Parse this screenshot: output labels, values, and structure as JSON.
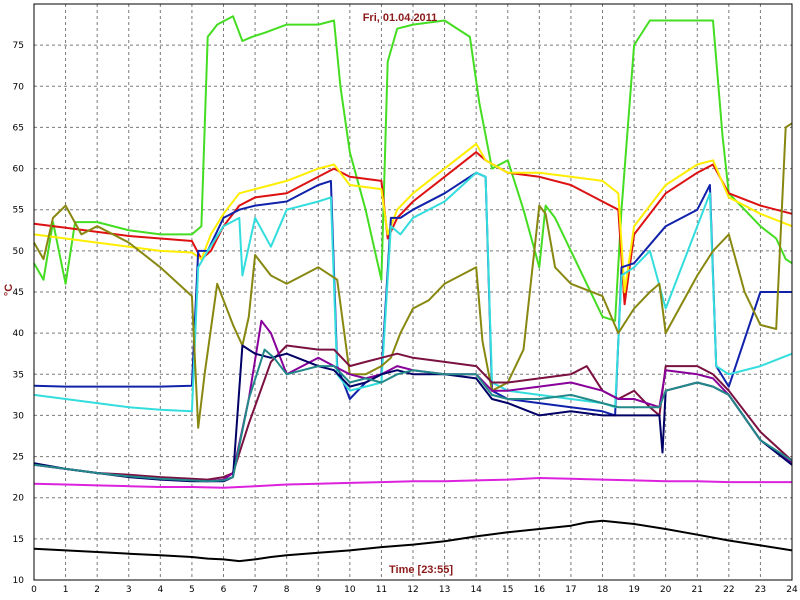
{
  "chart_data": {
    "type": "line",
    "title": "Fri, 01.04.2011",
    "xlabel": "Time [23:55]",
    "ylabel": "°C",
    "xlim": [
      0,
      24
    ],
    "ylim": [
      10,
      80
    ],
    "xticks": [
      0,
      1,
      2,
      3,
      4,
      5,
      6,
      7,
      8,
      9,
      10,
      11,
      12,
      13,
      14,
      15,
      16,
      17,
      18,
      19,
      20,
      21,
      22,
      23,
      24
    ],
    "yticks": [
      10,
      15,
      20,
      25,
      30,
      35,
      40,
      45,
      50,
      55,
      60,
      65,
      70,
      75
    ],
    "grid": true,
    "colors": {
      "grid": "#7a7a7a",
      "frame": "#000000",
      "title": "#8b1a1a"
    },
    "series": [
      {
        "color": "#44dd22",
        "x": [
          0,
          0.3,
          0.6,
          1.0,
          1.3,
          2.0,
          3.0,
          4.0,
          5.0,
          5.3,
          5.5,
          5.8,
          6.3,
          6.6,
          6.9,
          7.3,
          8.0,
          9.0,
          9.5,
          9.7,
          10.0,
          10.5,
          11.0,
          11.2,
          11.5,
          12.0,
          13.0,
          13.8,
          14.1,
          14.5,
          15.0,
          15.5,
          16.0,
          16.2,
          16.5,
          17.0,
          18.0,
          18.4,
          18.6,
          19.0,
          19.5,
          20.0,
          21.0,
          21.5,
          21.8,
          22.0,
          22.5,
          23.0,
          23.5,
          23.8,
          24.0
        ],
        "values": [
          48.5,
          46.5,
          53.5,
          46,
          53.5,
          53.5,
          52.5,
          52,
          52,
          53,
          76,
          77.5,
          78.5,
          75.5,
          76,
          76.5,
          77.5,
          77.5,
          78,
          70,
          62,
          55,
          46.5,
          73,
          77,
          77.5,
          78,
          76,
          68,
          60,
          61,
          55,
          48,
          55.5,
          54,
          50,
          42,
          41.5,
          55,
          75,
          78,
          78,
          78,
          78,
          64,
          57,
          55,
          53,
          51.5,
          49,
          48.5
        ]
      },
      {
        "color": "#dd1111",
        "x": [
          0,
          1,
          2,
          3,
          4,
          5,
          5.3,
          5.6,
          6,
          6.5,
          7,
          8,
          9,
          9.5,
          10,
          11,
          11.2,
          11.5,
          12,
          13,
          14,
          14.3,
          15,
          16,
          17,
          18,
          18.5,
          18.7,
          19,
          20,
          21,
          21.5,
          22,
          23,
          24
        ],
        "values": [
          53.3,
          52.8,
          52.3,
          51.8,
          51.5,
          51.2,
          49,
          50,
          53,
          55.5,
          56.5,
          57,
          59,
          60,
          59,
          58.5,
          51.5,
          54,
          56,
          59,
          62,
          61,
          59.5,
          59,
          58,
          56,
          55,
          43.5,
          52,
          57,
          59.5,
          60.5,
          57,
          55.5,
          54.5
        ]
      },
      {
        "color": "#ffee00",
        "x": [
          0,
          1,
          2,
          3,
          4,
          5,
          5.3,
          5.6,
          6,
          6.5,
          7,
          8,
          9,
          9.5,
          10,
          11,
          11.2,
          11.5,
          12,
          13,
          14,
          14.3,
          15,
          16,
          17,
          18,
          18.5,
          18.7,
          19,
          20,
          21,
          21.5,
          22,
          23,
          24
        ],
        "values": [
          52,
          51.5,
          51,
          50.5,
          50,
          49.8,
          49,
          52,
          54.5,
          57,
          57.5,
          58.5,
          60,
          60.5,
          58,
          57.5,
          52,
          55,
          57,
          60,
          63,
          61,
          59.5,
          59.5,
          59,
          58.5,
          57,
          45,
          53,
          58,
          60.5,
          61,
          56.5,
          54.5,
          53
        ]
      },
      {
        "color": "#1122aa",
        "x": [
          0,
          1,
          2,
          3,
          4,
          5,
          5.2,
          5.5,
          6,
          6.5,
          7,
          8,
          9,
          9.4,
          9.6,
          10,
          10.5,
          11,
          11.3,
          11.6,
          12,
          13,
          14,
          14.3,
          14.5,
          15,
          16,
          17,
          18,
          18.4,
          18.6,
          19,
          20,
          21,
          21.4,
          21.6,
          22,
          23,
          24
        ],
        "values": [
          33.6,
          33.5,
          33.5,
          33.5,
          33.5,
          33.6,
          50,
          50,
          54,
          55,
          55.5,
          56,
          58,
          58.5,
          36,
          32,
          34,
          35,
          54,
          54,
          55,
          57,
          59.5,
          59,
          33,
          32,
          31.5,
          31,
          30.5,
          30,
          48,
          48.5,
          53,
          55,
          58,
          36,
          33.5,
          45,
          45
        ]
      },
      {
        "color": "#33dddd",
        "x": [
          0,
          1,
          2,
          3,
          4,
          5,
          5.2,
          5.5,
          6,
          6.5,
          6.6,
          7,
          7.5,
          8,
          9,
          9.4,
          9.6,
          10,
          10.5,
          11,
          11.3,
          11.6,
          12,
          13,
          14,
          14.3,
          14.5,
          15,
          16,
          17,
          18,
          18.4,
          18.6,
          19,
          19.5,
          20,
          21,
          21.4,
          21.6,
          22,
          23,
          24
        ],
        "values": [
          32.5,
          32,
          31.5,
          31,
          30.7,
          30.5,
          48,
          50,
          53,
          54,
          47,
          54,
          50.5,
          55,
          56,
          56.5,
          35,
          33,
          33.5,
          34,
          53,
          52,
          54,
          56,
          59.5,
          59,
          34,
          33,
          32.5,
          32,
          31.5,
          31,
          47,
          48,
          50,
          43,
          53,
          57,
          36,
          35,
          36,
          37.5
        ]
      },
      {
        "color": "#888811",
        "x": [
          0,
          0.3,
          0.6,
          1,
          1.5,
          2,
          3,
          4,
          5,
          5.2,
          5.4,
          5.8,
          6.3,
          6.6,
          6.8,
          7,
          7.5,
          8,
          9,
          9.6,
          10,
          10.5,
          11,
          11.3,
          11.6,
          12,
          12.5,
          13,
          14,
          14.2,
          14.5,
          15,
          15.5,
          16,
          16.2,
          16.5,
          17,
          18,
          18.5,
          19,
          19.5,
          19.8,
          20,
          21,
          21.5,
          22,
          22.5,
          23,
          23.5,
          23.8,
          24
        ],
        "values": [
          51,
          49,
          54,
          55.5,
          52,
          53,
          51,
          48,
          44.5,
          28.5,
          35,
          46,
          41,
          38.5,
          42,
          49.5,
          47,
          46,
          48,
          46.5,
          35,
          35,
          36,
          37,
          40,
          43,
          44,
          46,
          48,
          39,
          33,
          34,
          38,
          55.5,
          54.5,
          48,
          46,
          44.5,
          40,
          43,
          45,
          46,
          40,
          47,
          50,
          52,
          45,
          41,
          40.5,
          65,
          65.5
        ]
      },
      {
        "color": "#7a1140",
        "x": [
          0,
          1,
          2,
          3,
          4,
          5,
          5.5,
          6,
          6.3,
          6.8,
          7.5,
          8,
          9,
          9.5,
          10,
          10.5,
          11,
          11.5,
          12,
          13,
          14,
          14.5,
          15,
          16,
          17,
          17.5,
          18,
          18.5,
          19,
          19.5,
          19.8,
          20,
          21,
          21.5,
          22,
          23,
          24
        ],
        "values": [
          24,
          23.5,
          23,
          22.8,
          22.5,
          22.3,
          22.2,
          22.5,
          23,
          29,
          36.5,
          38.5,
          38,
          38,
          36,
          36.5,
          37,
          37.5,
          37,
          36.5,
          36,
          34,
          34,
          34.5,
          35,
          36,
          33,
          32,
          33,
          31,
          30,
          36,
          36,
          35,
          33,
          28,
          24.5
        ]
      },
      {
        "color": "#880099",
        "x": [
          0,
          1,
          2,
          3,
          4,
          5,
          5.5,
          6,
          6.3,
          6.8,
          7.2,
          7.5,
          8,
          9,
          9.5,
          10,
          10.5,
          11,
          11.5,
          12,
          13,
          14,
          14.5,
          15,
          16,
          17,
          18,
          18.5,
          19,
          19.8,
          20,
          21,
          21.5,
          22,
          23,
          24
        ],
        "values": [
          24,
          23.5,
          23,
          22.6,
          22.3,
          22.1,
          22,
          22.2,
          23,
          32,
          41.5,
          40,
          35,
          37,
          36,
          35,
          34.5,
          35,
          36,
          35.5,
          35,
          35,
          33,
          33,
          33.5,
          34,
          33,
          32,
          32,
          31,
          35.5,
          35,
          34.5,
          32.5,
          27,
          24.2
        ]
      },
      {
        "color": "#000066",
        "x": [
          0,
          1,
          2,
          3,
          4,
          5,
          5.5,
          6,
          6.3,
          6.6,
          7,
          7.5,
          8,
          9,
          9.5,
          10,
          10.5,
          11,
          11.5,
          12,
          13,
          14,
          14.5,
          15,
          16,
          17,
          18,
          18.5,
          19,
          19.8,
          19.9,
          20,
          21,
          21.5,
          22,
          23,
          24
        ],
        "values": [
          24.2,
          23.5,
          23,
          22.5,
          22.2,
          22,
          22,
          22,
          22.5,
          38.5,
          37.5,
          37,
          37.5,
          36,
          35.5,
          33.5,
          34,
          35,
          35.5,
          35,
          35,
          34.5,
          32,
          31.5,
          30,
          30.5,
          30,
          30,
          30,
          30,
          25.5,
          33,
          34,
          33.5,
          32.5,
          27,
          24
        ]
      },
      {
        "color": "#228888",
        "x": [
          0,
          1,
          2,
          3,
          4,
          5,
          5.5,
          6,
          6.3,
          6.8,
          7.3,
          7.6,
          8,
          9,
          9.5,
          10,
          10.5,
          11,
          11.5,
          12,
          13,
          14,
          14.5,
          15,
          16,
          17,
          18,
          18.5,
          19,
          19.8,
          20,
          21,
          21.5,
          22,
          23,
          24
        ],
        "values": [
          24,
          23.5,
          23,
          22.6,
          22.3,
          22.1,
          22,
          22.1,
          22.5,
          32,
          38,
          37,
          35,
          36,
          36,
          34,
          34.5,
          34,
          35,
          35.5,
          35,
          35,
          32.5,
          32,
          32,
          32.5,
          31.5,
          31,
          31,
          31,
          33,
          34,
          33.5,
          32.5,
          27,
          24.5
        ]
      },
      {
        "color": "#dd22dd",
        "x": [
          0,
          1,
          2,
          3,
          4,
          5,
          6,
          7,
          8,
          9,
          10,
          11,
          12,
          13,
          14,
          15,
          16,
          17,
          18,
          19,
          20,
          21,
          22,
          23,
          24
        ],
        "values": [
          21.7,
          21.6,
          21.5,
          21.4,
          21.3,
          21.3,
          21.2,
          21.4,
          21.6,
          21.7,
          21.8,
          21.9,
          22,
          22,
          22.1,
          22.2,
          22.4,
          22.3,
          22.2,
          22.1,
          22,
          22,
          21.9,
          21.9,
          21.9
        ]
      },
      {
        "color": "#000000",
        "x": [
          0,
          1,
          2,
          3,
          4,
          5,
          5.5,
          6,
          6.5,
          7,
          7.5,
          8,
          9,
          10,
          11,
          12,
          13,
          14,
          15,
          16,
          17,
          17.5,
          18,
          19,
          20,
          21,
          22,
          23,
          24
        ],
        "values": [
          13.8,
          13.6,
          13.4,
          13.2,
          13,
          12.8,
          12.6,
          12.5,
          12.3,
          12.5,
          12.8,
          13,
          13.3,
          13.6,
          14,
          14.3,
          14.7,
          15.3,
          15.8,
          16.2,
          16.6,
          17,
          17.2,
          16.8,
          16.2,
          15.5,
          14.8,
          14.2,
          13.6
        ]
      }
    ]
  }
}
